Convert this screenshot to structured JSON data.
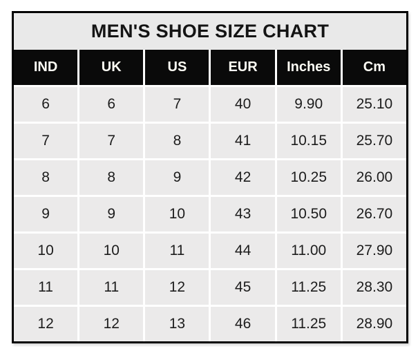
{
  "chart_data": {
    "type": "table",
    "title": "MEN'S SHOE SIZE CHART",
    "columns": [
      "IND",
      "UK",
      "US",
      "EUR",
      "Inches",
      "Cm"
    ],
    "rows": [
      [
        "6",
        "6",
        "7",
        "40",
        "9.90",
        "25.10"
      ],
      [
        "7",
        "7",
        "8",
        "41",
        "10.15",
        "25.70"
      ],
      [
        "8",
        "8",
        "9",
        "42",
        "10.25",
        "26.00"
      ],
      [
        "9",
        "9",
        "10",
        "43",
        "10.50",
        "26.70"
      ],
      [
        "10",
        "10",
        "11",
        "44",
        "11.00",
        "27.90"
      ],
      [
        "11",
        "11",
        "12",
        "45",
        "11.25",
        "28.30"
      ],
      [
        "12",
        "12",
        "13",
        "46",
        "11.25",
        "28.90"
      ]
    ],
    "layout": {
      "grid": "on",
      "header_position": "top",
      "title_position": "top-center"
    }
  },
  "colors": {
    "page_bg": "#ffffff",
    "border": "#000000",
    "title_bg": "#e9e9e9",
    "title_text": "#141414",
    "header_bg": "#0a0a0a",
    "header_text": "#fdfcf4",
    "cell_bg": "#ebeaea",
    "cell_text": "#1c1c1c",
    "gridline": "#ffffff"
  }
}
